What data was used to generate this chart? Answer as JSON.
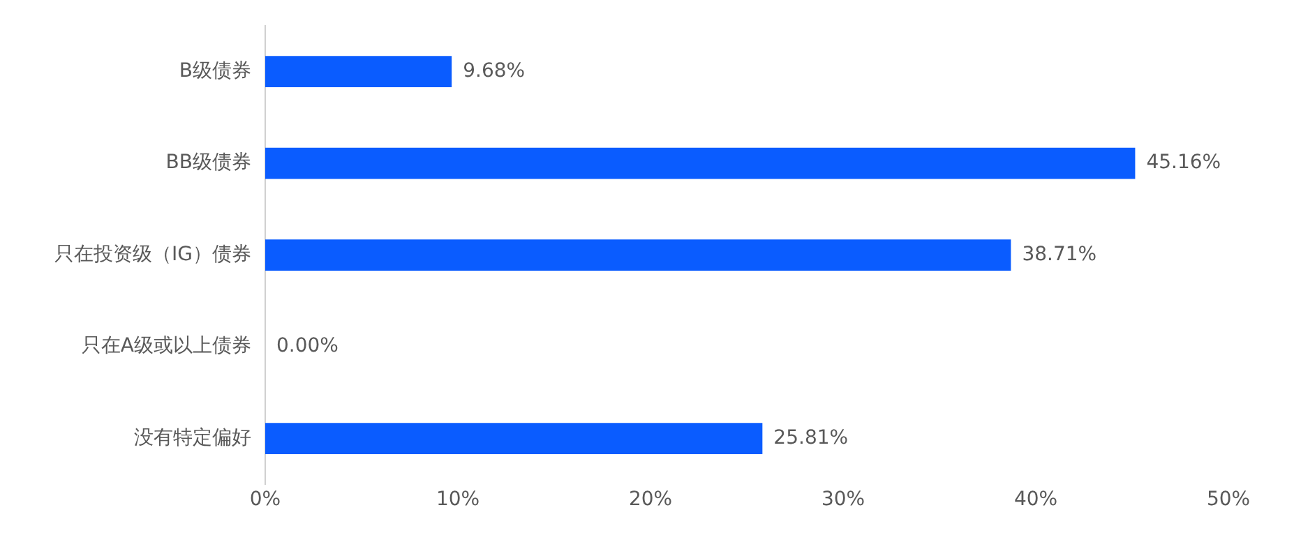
{
  "chart_data": {
    "type": "bar",
    "orientation": "horizontal",
    "categories": [
      "B级债券",
      "BB级债券",
      "只在投资级（IG）债券",
      "只在A级或以上债券",
      "没有特定偏好"
    ],
    "values": [
      9.68,
      45.16,
      38.71,
      0,
      25.81
    ],
    "value_labels": [
      "9.68%",
      "45.16%",
      "38.71%",
      "0.00%",
      "25.81%"
    ],
    "color": "#0a5cff",
    "xlim": [
      0,
      50
    ],
    "xticks": [
      {
        "value": 0,
        "label": "0%"
      },
      {
        "value": 10,
        "label": "10%"
      },
      {
        "value": 20,
        "label": "20%"
      },
      {
        "value": 30,
        "label": "30%"
      },
      {
        "value": 40,
        "label": "40%"
      },
      {
        "value": 50,
        "label": "50%"
      }
    ],
    "grid": false,
    "legend": false
  }
}
